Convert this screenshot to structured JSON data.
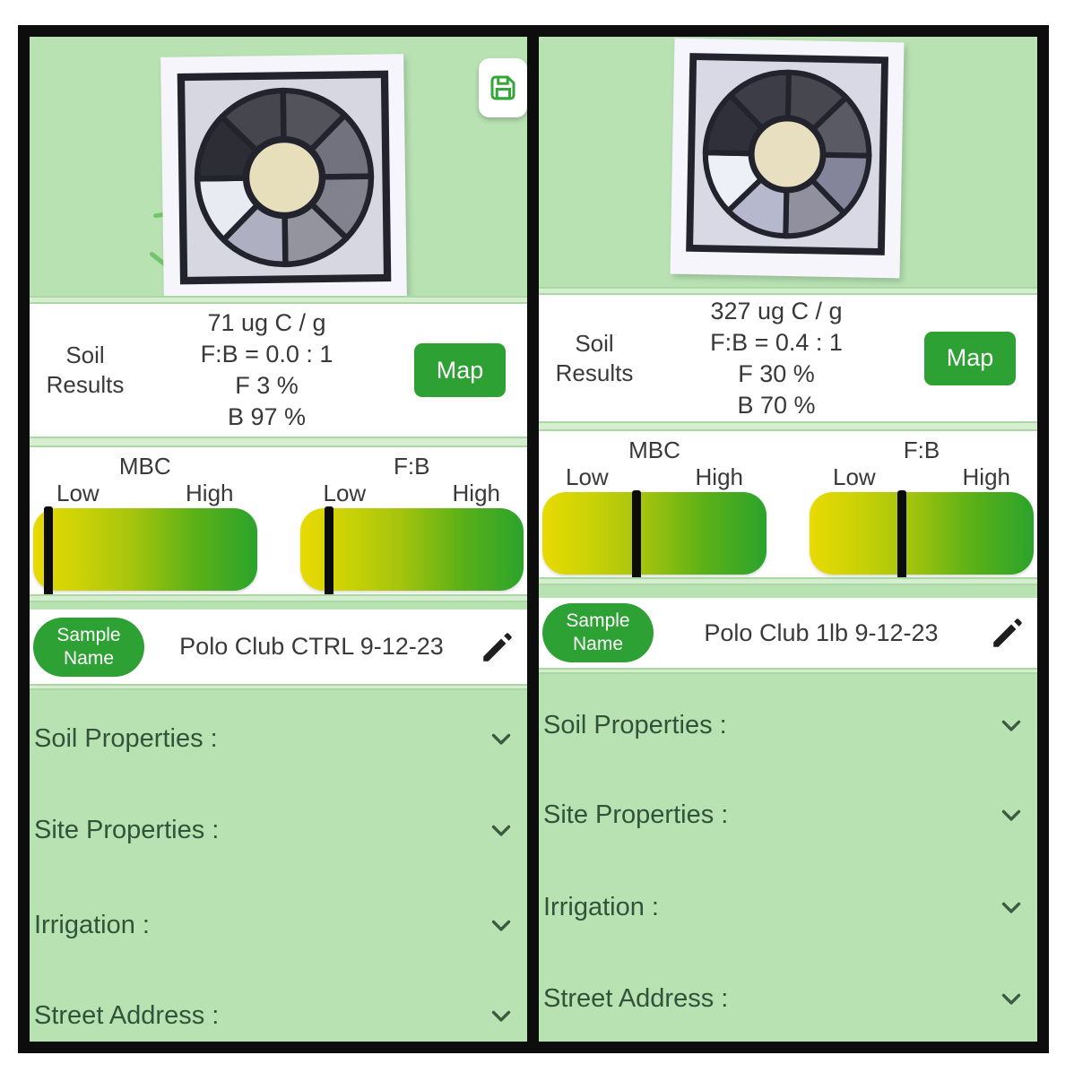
{
  "colors": {
    "frame_black": "#0d0d0d",
    "panel_background_green": "#b9e2b3",
    "separator_strip_green": "#d6eecf",
    "accent_green": "#2ea135",
    "gauge_gradient_start": "#e9da03",
    "gauge_gradient_end": "#2ba32c",
    "section_text_green": "#33523a",
    "result_text_gray": "#383838"
  },
  "icons": {
    "save": "floppy-disk",
    "edit": "pencil",
    "expand": "chevron-down"
  },
  "panels": [
    {
      "side": "left",
      "wheel": {
        "card": "#f5f5fb",
        "face": "#d7d7e1",
        "line": "#23232d",
        "center": "#e7dfbc",
        "segments": [
          "#53535c",
          "#72727e",
          "#82828e",
          "#94949f",
          "#aeafc0",
          "#e9ebf3",
          "#2d2d35",
          "#46464f"
        ]
      },
      "results": {
        "label": "Soil Results",
        "lines": [
          "71 ug C / g",
          "F:B = 0.0 : 1",
          "F 3 %",
          "B 97 %"
        ],
        "map_label": "Map"
      },
      "gauges": [
        {
          "title": "MBC",
          "low_label": "Low",
          "high_label": "High",
          "marker_pct": 7
        },
        {
          "title": "F:B",
          "low_label": "Low",
          "high_label": "High",
          "marker_pct": 13
        }
      ],
      "sample": {
        "badge": "Sample Name",
        "name": "Polo Club CTRL 9-12-23"
      },
      "sections": [
        "Soil Properties :",
        "Site Properties :",
        "Irrigation :",
        "Street Address :"
      ]
    },
    {
      "side": "right",
      "wheel": {
        "card": "#f5f5fb",
        "face": "#d9d9e6",
        "line": "#23232d",
        "center": "#e8dfc0",
        "segments": [
          "#47474f",
          "#5a5a64",
          "#84849a",
          "#90909f",
          "#b6b8ce",
          "#eef0f8",
          "#30303a",
          "#3d3d47"
        ]
      },
      "results": {
        "label": "Soil Results",
        "lines": [
          "327 ug C / g",
          "F:B = 0.4 : 1",
          "F 30 %",
          "B 70 %"
        ],
        "map_label": "Map"
      },
      "gauges": [
        {
          "title": "MBC",
          "low_label": "Low",
          "high_label": "High",
          "marker_pct": 42
        },
        {
          "title": "F:B",
          "low_label": "Low",
          "high_label": "High",
          "marker_pct": 41
        }
      ],
      "sample": {
        "badge": "Sample Name",
        "name": "Polo Club 1lb 9-12-23"
      },
      "sections": [
        "Soil Properties :",
        "Site Properties :",
        "Irrigation :",
        "Street Address :"
      ]
    }
  ]
}
